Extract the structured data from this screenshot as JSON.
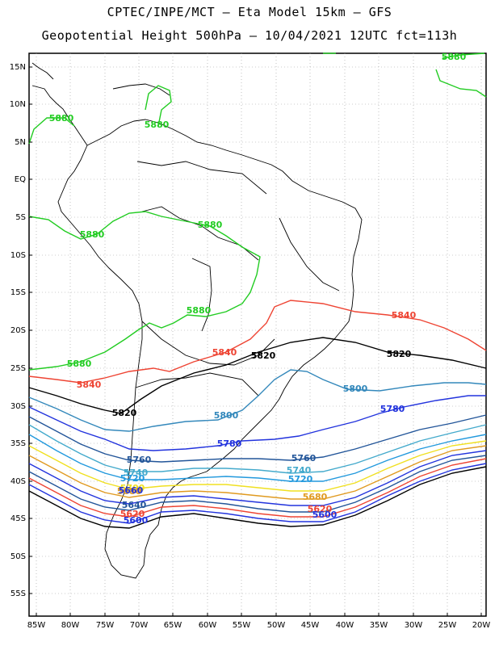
{
  "title_line1": "CPTEC/INPE/MCT –  Eta Model 15km – GFS",
  "title_line2": "Geopotential Height 500hPa – 10/04/2021 12UTC fct=113h",
  "lat_ticks": [
    "15N",
    "10N",
    "5N",
    "EQ",
    "5S",
    "10S",
    "15S",
    "20S",
    "25S",
    "30S",
    "35S",
    "40S",
    "45S",
    "50S",
    "55S"
  ],
  "lon_ticks": [
    "85W",
    "80W",
    "75W",
    "70W",
    "65W",
    "60W",
    "55W",
    "50W",
    "45W",
    "40W",
    "35W",
    "30W",
    "25W",
    "20W"
  ],
  "contour_colors": {
    "5880": "#22cc22",
    "5840": "#ee4433",
    "5820": "#000000",
    "5800": "#3388bb",
    "5780": "#2233dd",
    "5760": "#225599",
    "5740": "#44aacc",
    "5720": "#2299dd",
    "5700": "#f0e020",
    "5680": "#e09a20"
  },
  "contour_labels": [
    {
      "text": "5880",
      "color_key": "5880"
    },
    {
      "text": "5880",
      "color_key": "5880"
    },
    {
      "text": "5880",
      "color_key": "5880"
    },
    {
      "text": "5880",
      "color_key": "5880"
    },
    {
      "text": "5880",
      "color_key": "5880"
    },
    {
      "text": "5880",
      "color_key": "5880"
    },
    {
      "text": "5880",
      "color_key": "5880"
    },
    {
      "text": "5840",
      "color_key": "5840"
    },
    {
      "text": "5840",
      "color_key": "5840"
    },
    {
      "text": "5840",
      "color_key": "5840"
    },
    {
      "text": "5820",
      "color_key": "5820"
    },
    {
      "text": "5820",
      "color_key": "5820"
    },
    {
      "text": "5820",
      "color_key": "5820"
    },
    {
      "text": "5800",
      "color_key": "5800"
    },
    {
      "text": "5800",
      "color_key": "5800"
    },
    {
      "text": "5780",
      "color_key": "5780"
    },
    {
      "text": "5780",
      "color_key": "5780"
    },
    {
      "text": "5760",
      "color_key": "5760"
    },
    {
      "text": "5760",
      "color_key": "5760"
    },
    {
      "text": "5740",
      "color_key": "5740"
    },
    {
      "text": "5740",
      "color_key": "5740"
    },
    {
      "text": "5720",
      "color_key": "5720"
    },
    {
      "text": "5720",
      "color_key": "5720"
    },
    {
      "text": "5700",
      "color_key": "5700"
    },
    {
      "text": "5680",
      "color_key": "5680"
    },
    {
      "text": "5680",
      "color_key": "5680"
    },
    {
      "text": "5660",
      "color_key": "5780"
    },
    {
      "text": "5640",
      "color_key": "5760"
    },
    {
      "text": "5620",
      "color_key": "5840"
    },
    {
      "text": "5620",
      "color_key": "5840"
    },
    {
      "text": "5600",
      "color_key": "5780"
    },
    {
      "text": "5600",
      "color_key": "5780"
    }
  ]
}
